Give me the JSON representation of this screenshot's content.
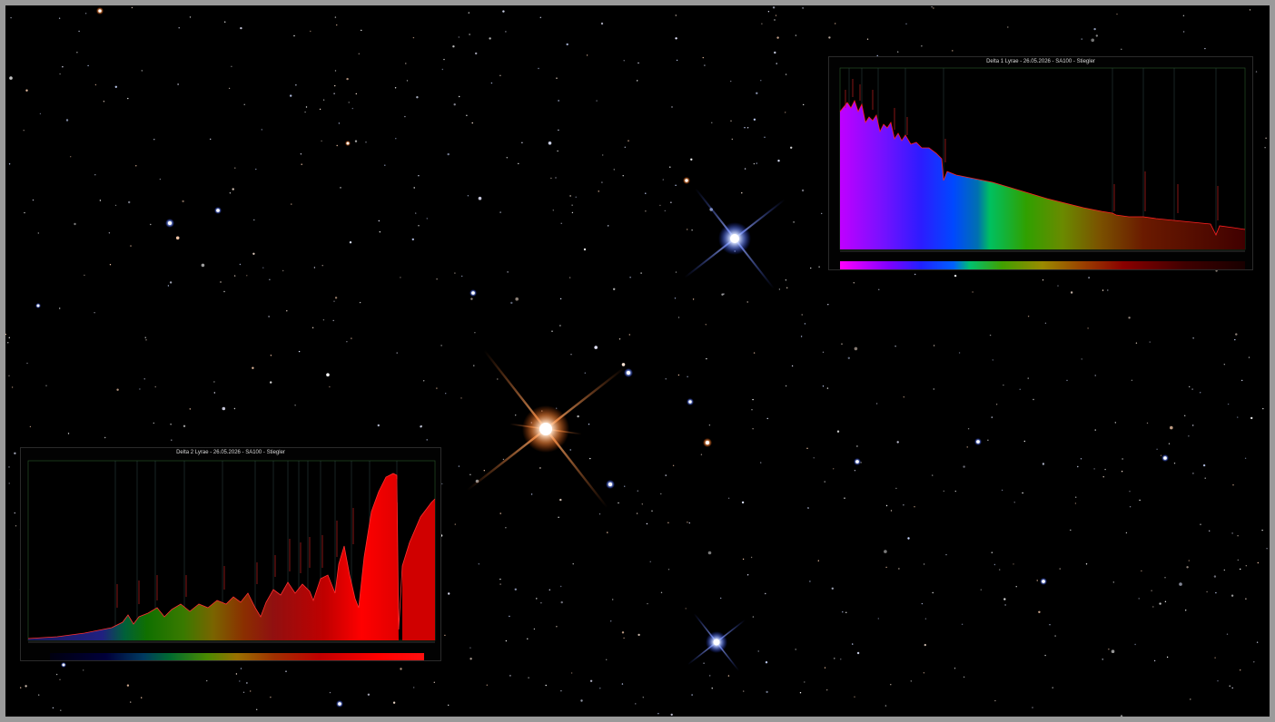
{
  "image": {
    "subject": "Delta Lyrae star field",
    "background_color": "#000000",
    "frame_color": "#9a9a9a"
  },
  "insets": [
    {
      "id": "delta1",
      "title": "Delta 1 Lyrae - 26.05.2026 - SA100 - Stiegler",
      "spectrum_profile": "hot-blue",
      "colors": [
        "#c000ff",
        "#3a20ff",
        "#0050ff",
        "#00c050",
        "#4aa000",
        "#8a7000",
        "#802000",
        "#500000"
      ]
    },
    {
      "id": "delta2",
      "title": "Delta 2 Lyrae - 26.05.2026 - SA100 - Stiegler",
      "spectrum_profile": "cool-red",
      "colors": [
        "#1a1a60",
        "#007000",
        "#3a8a00",
        "#8a6a00",
        "#9a2a00",
        "#ff0000"
      ]
    }
  ]
}
